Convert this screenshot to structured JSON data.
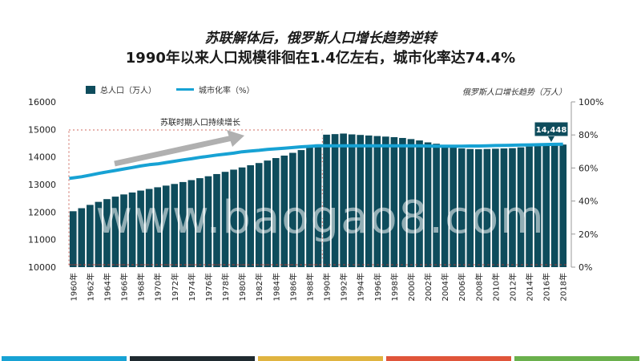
{
  "titles": {
    "line1": "苏联解体后，俄罗斯人口增长趋势逆转",
    "line2": "1990年以来人口规模徘徊在1.4亿左右，城市化率达74.4%"
  },
  "legend": {
    "bar_label": "总人口（万人）",
    "line_label": "城市化率（%）"
  },
  "caption": "俄罗斯人口增长趋势（万人）",
  "watermark": "www.baogao8.com",
  "colors": {
    "bar": "#0e4c5c",
    "line": "#17a2d4",
    "arrow": "#b0b0b0",
    "stripes": [
      "#17a2d4",
      "#1f2a30",
      "#e0b440",
      "#e0553a",
      "#6ab04c"
    ]
  },
  "chart_data": {
    "type": "bar",
    "x": [
      1960,
      1961,
      1962,
      1963,
      1964,
      1965,
      1966,
      1967,
      1968,
      1969,
      1970,
      1971,
      1972,
      1973,
      1974,
      1975,
      1976,
      1977,
      1978,
      1979,
      1980,
      1981,
      1982,
      1983,
      1984,
      1985,
      1986,
      1987,
      1988,
      1989,
      1990,
      1991,
      1992,
      1993,
      1994,
      1995,
      1996,
      1997,
      1998,
      1999,
      2000,
      2001,
      2002,
      2003,
      2004,
      2005,
      2006,
      2007,
      2008,
      2009,
      2010,
      2011,
      2012,
      2013,
      2014,
      2015,
      2016,
      2017,
      2018
    ],
    "tick_labels": [
      "1960年",
      "1962年",
      "1964年",
      "1966年",
      "1968年",
      "1970年",
      "1972年",
      "1974年",
      "1976年",
      "1978年",
      "1980年",
      "1982年",
      "1984年",
      "1986年",
      "1988年",
      "1990年",
      "1992年",
      "1994年",
      "1996年",
      "1998年",
      "2000年",
      "2002年",
      "2004年",
      "2006年",
      "2008年",
      "2010年",
      "2012年",
      "2014年",
      "2016年",
      "2018年"
    ],
    "series": [
      {
        "name": "总人口（万人）",
        "type": "bar",
        "axis": "left",
        "values": [
          12030,
          12140,
          12260,
          12370,
          12470,
          12560,
          12640,
          12710,
          12780,
          12840,
          12900,
          12960,
          13020,
          13090,
          13160,
          13230,
          13300,
          13380,
          13460,
          13540,
          13620,
          13700,
          13780,
          13870,
          13960,
          14050,
          14150,
          14250,
          14350,
          14460,
          14810,
          14830,
          14850,
          14820,
          14800,
          14780,
          14760,
          14740,
          14720,
          14690,
          14650,
          14600,
          14530,
          14480,
          14440,
          14360,
          14310,
          14290,
          14280,
          14290,
          14300,
          14310,
          14320,
          14350,
          14380,
          14400,
          14420,
          14440,
          14450
        ]
      },
      {
        "name": "城市化率（%）",
        "type": "line",
        "axis": "right",
        "values": [
          53.7,
          54.7,
          55.7,
          56.7,
          57.6,
          58.5,
          59.4,
          60.3,
          61.2,
          62.0,
          62.5,
          63.3,
          64.1,
          64.9,
          65.6,
          66.4,
          67.1,
          67.8,
          68.4,
          69.0,
          69.8,
          70.3,
          70.7,
          71.2,
          71.6,
          72.0,
          72.4,
          72.8,
          73.1,
          73.4,
          73.4,
          73.4,
          73.4,
          73.4,
          73.4,
          73.4,
          73.4,
          73.4,
          73.4,
          73.4,
          73.4,
          73.4,
          73.3,
          73.2,
          73.2,
          73.2,
          73.2,
          73.3,
          73.3,
          73.4,
          73.6,
          73.7,
          73.8,
          73.9,
          74.0,
          74.1,
          74.2,
          74.3,
          74.4
        ]
      }
    ],
    "y_left": {
      "ylim": [
        10000,
        16000
      ],
      "ticks": [
        "10000",
        "11000",
        "12000",
        "13000",
        "14000",
        "15000",
        "16000"
      ]
    },
    "y_right": {
      "ylim": [
        0,
        100
      ],
      "ticks": [
        "0%",
        "20%",
        "40%",
        "60%",
        "80%",
        "100%"
      ]
    },
    "annotation_region": "苏联时期人口持续增长",
    "callout": "14,448",
    "legend_position": "top-left",
    "grid": false
  }
}
